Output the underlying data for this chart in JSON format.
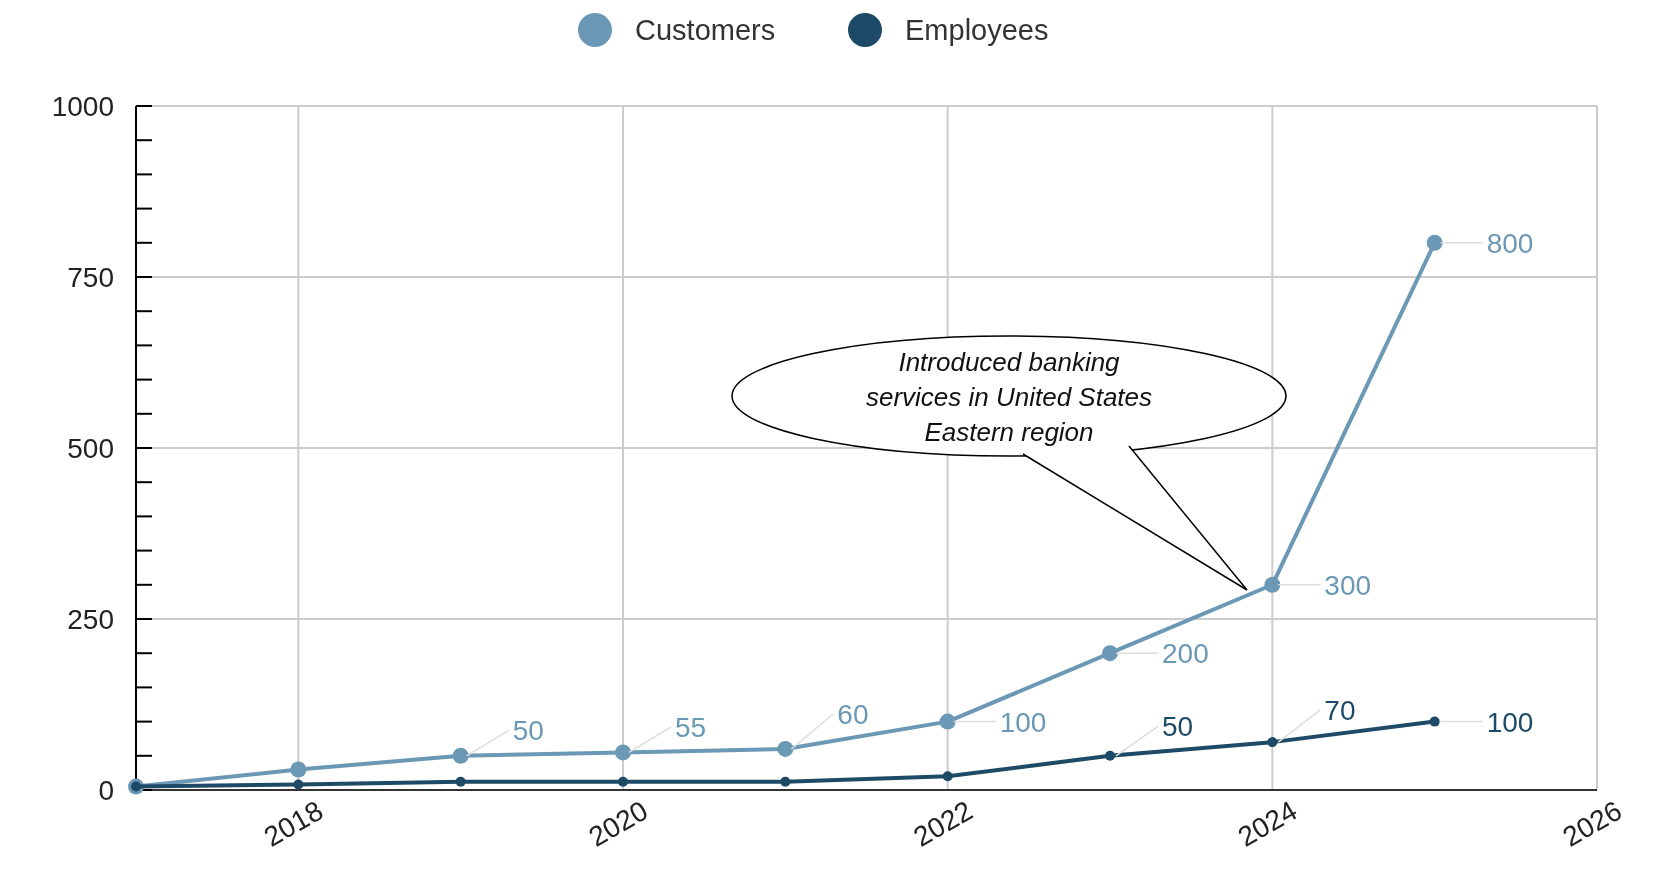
{
  "chart_data": {
    "type": "line",
    "x": [
      2017,
      2018,
      2019,
      2020,
      2021,
      2022,
      2023,
      2024,
      2025
    ],
    "series": [
      {
        "name": "Customers",
        "color": "#6b98b5",
        "values": [
          5,
          30,
          50,
          55,
          60,
          100,
          200,
          300,
          800
        ],
        "value_labels": [
          null,
          null,
          "50",
          "55",
          "60",
          "100",
          "200",
          "300",
          "800"
        ]
      },
      {
        "name": "Employees",
        "color": "#1d4a66",
        "values": [
          5,
          8,
          12,
          12,
          12,
          20,
          50,
          70,
          100
        ],
        "value_labels": [
          null,
          null,
          null,
          null,
          null,
          null,
          "50",
          "70",
          "100"
        ]
      }
    ],
    "xlim": [
      2017,
      2026
    ],
    "xticks": [
      2018,
      2020,
      2022,
      2024,
      2026
    ],
    "ylim": [
      0,
      1000
    ],
    "yticks": [
      0,
      {
        "value": 50,
        "label": null
      },
      {
        "value": 100,
        "label": null
      },
      {
        "value": 150,
        "label": null
      },
      {
        "value": 200,
        "label": null
      },
      250,
      {
        "value": 300,
        "label": null
      },
      {
        "value": 350,
        "label": null
      },
      {
        "value": 400,
        "label": null
      },
      {
        "value": 450,
        "label": null
      },
      500,
      {
        "value": 550,
        "label": null
      },
      {
        "value": 600,
        "label": null
      },
      {
        "value": 650,
        "label": null
      },
      {
        "value": 700,
        "label": null
      },
      750,
      {
        "value": 800,
        "label": null
      },
      {
        "value": 850,
        "label": null
      },
      {
        "value": 900,
        "label": null
      },
      {
        "value": 950,
        "label": null
      },
      1000
    ],
    "grid": true,
    "legend": "top",
    "marker": "circle",
    "line_style": "solid",
    "annotations": [
      "Introduced banking services in United States Eastern region"
    ]
  }
}
